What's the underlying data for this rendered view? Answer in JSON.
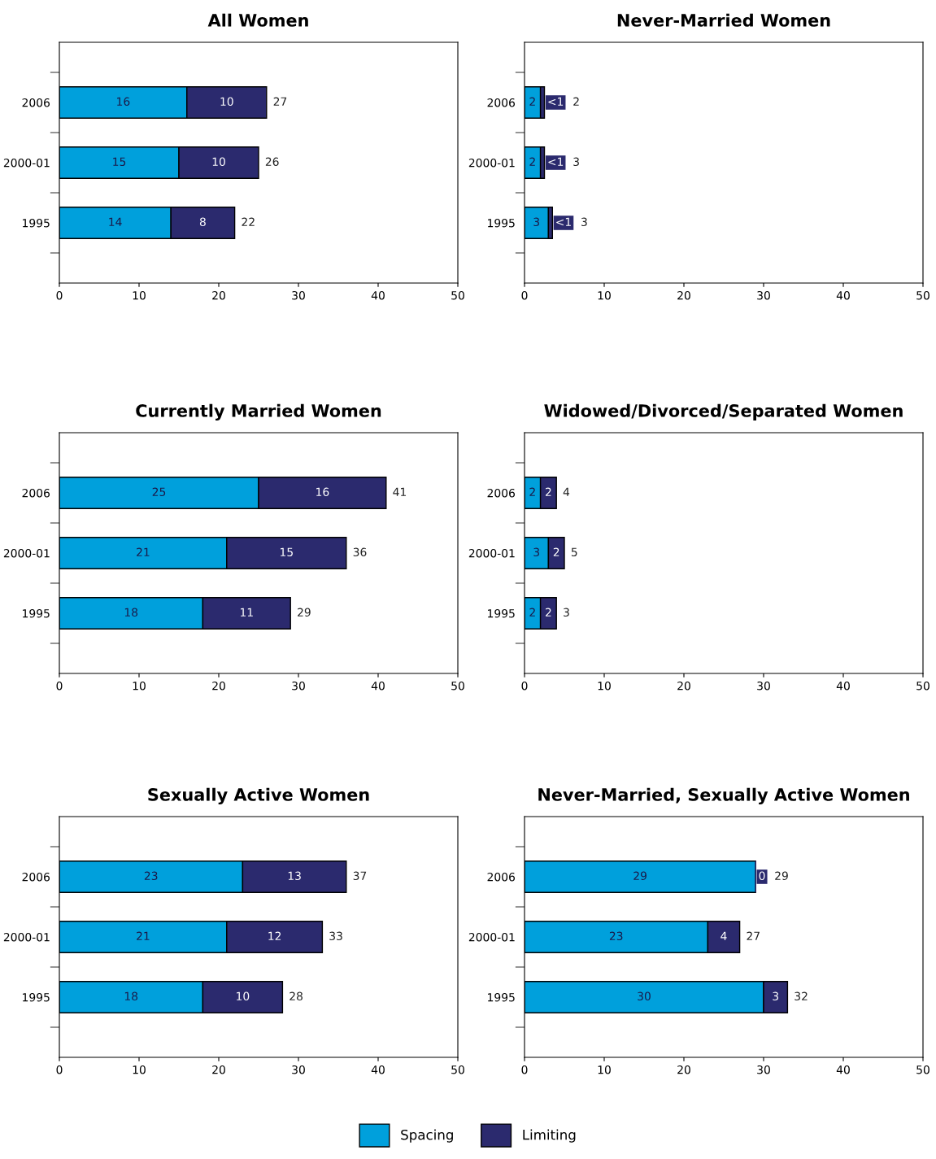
{
  "chart_data": [
    {
      "type": "bar",
      "orientation": "horizontal",
      "stacked": true,
      "title": "All Women",
      "legend": "bottom",
      "categories": [
        "2006",
        "2000-01",
        "1995"
      ],
      "xlim": [
        0,
        50
      ],
      "xticks": [
        0,
        10,
        20,
        30,
        40,
        50
      ],
      "grid": false,
      "series": [
        {
          "name": "Spacing",
          "color": "#00a0dc",
          "values": [
            16,
            15,
            14
          ],
          "value_labels": [
            "16",
            "15",
            "14"
          ]
        },
        {
          "name": "Limiting",
          "color": "#2b2a6e",
          "values": [
            10,
            10,
            8
          ],
          "value_labels": [
            "10",
            "10",
            "8"
          ]
        }
      ],
      "totals": [
        "27",
        "26",
        "22"
      ]
    },
    {
      "type": "bar",
      "orientation": "horizontal",
      "stacked": true,
      "title": "Never-Married Women",
      "legend": "bottom",
      "categories": [
        "2006",
        "2000-01",
        "1995"
      ],
      "xlim": [
        0,
        50
      ],
      "xticks": [
        0,
        10,
        20,
        30,
        40,
        50
      ],
      "grid": false,
      "series": [
        {
          "name": "Spacing",
          "color": "#00a0dc",
          "values": [
            2,
            2,
            3
          ],
          "value_labels": [
            "2",
            "2",
            "3"
          ]
        },
        {
          "name": "Limiting",
          "color": "#2b2a6e",
          "values": [
            0.5,
            0.5,
            0.5
          ],
          "value_labels": [
            "<1",
            "<1",
            "<1"
          ]
        }
      ],
      "totals": [
        "2",
        "3",
        "3"
      ]
    },
    {
      "type": "bar",
      "orientation": "horizontal",
      "stacked": true,
      "title": "Currently Married Women",
      "legend": "bottom",
      "categories": [
        "2006",
        "2000-01",
        "1995"
      ],
      "xlim": [
        0,
        50
      ],
      "xticks": [
        0,
        10,
        20,
        30,
        40,
        50
      ],
      "grid": false,
      "series": [
        {
          "name": "Spacing",
          "color": "#00a0dc",
          "values": [
            25,
            21,
            18
          ],
          "value_labels": [
            "25",
            "21",
            "18"
          ]
        },
        {
          "name": "Limiting",
          "color": "#2b2a6e",
          "values": [
            16,
            15,
            11
          ],
          "value_labels": [
            "16",
            "15",
            "11"
          ]
        }
      ],
      "totals": [
        "41",
        "36",
        "29"
      ]
    },
    {
      "type": "bar",
      "orientation": "horizontal",
      "stacked": true,
      "title": "Widowed/Divorced/Separated Women",
      "legend": "bottom",
      "categories": [
        "2006",
        "2000-01",
        "1995"
      ],
      "xlim": [
        0,
        50
      ],
      "xticks": [
        0,
        10,
        20,
        30,
        40,
        50
      ],
      "grid": false,
      "series": [
        {
          "name": "Spacing",
          "color": "#00a0dc",
          "values": [
            2,
            3,
            2
          ],
          "value_labels": [
            "2",
            "3",
            "2"
          ]
        },
        {
          "name": "Limiting",
          "color": "#2b2a6e",
          "values": [
            2,
            2,
            2
          ],
          "value_labels": [
            "2",
            "2",
            "2"
          ]
        }
      ],
      "totals": [
        "4",
        "5",
        "3"
      ]
    },
    {
      "type": "bar",
      "orientation": "horizontal",
      "stacked": true,
      "title": "Sexually Active Women",
      "legend": "bottom",
      "categories": [
        "2006",
        "2000-01",
        "1995"
      ],
      "xlim": [
        0,
        50
      ],
      "xticks": [
        0,
        10,
        20,
        30,
        40,
        50
      ],
      "grid": false,
      "series": [
        {
          "name": "Spacing",
          "color": "#00a0dc",
          "values": [
            23,
            21,
            18
          ],
          "value_labels": [
            "23",
            "21",
            "18"
          ]
        },
        {
          "name": "Limiting",
          "color": "#2b2a6e",
          "values": [
            13,
            12,
            10
          ],
          "value_labels": [
            "13",
            "12",
            "10"
          ]
        }
      ],
      "totals": [
        "37",
        "33",
        "28"
      ]
    },
    {
      "type": "bar",
      "orientation": "horizontal",
      "stacked": true,
      "title": "Never-Married, Sexually Active Women",
      "categories": [
        "2006",
        "2000-01",
        "1995"
      ],
      "xlim": [
        0,
        50
      ],
      "xticks": [
        0,
        10,
        20,
        30,
        40,
        50
      ],
      "grid": false,
      "legend": "bottom",
      "series": [
        {
          "name": "Spacing",
          "color": "#00a0dc",
          "values": [
            29,
            23,
            30
          ],
          "value_labels": [
            "29",
            "23",
            "30"
          ]
        },
        {
          "name": "Limiting",
          "color": "#2b2a6e",
          "values": [
            0,
            4,
            3
          ],
          "value_labels": [
            "0",
            "4",
            "3"
          ]
        }
      ],
      "totals": [
        "29",
        "27",
        "32"
      ]
    }
  ]
}
